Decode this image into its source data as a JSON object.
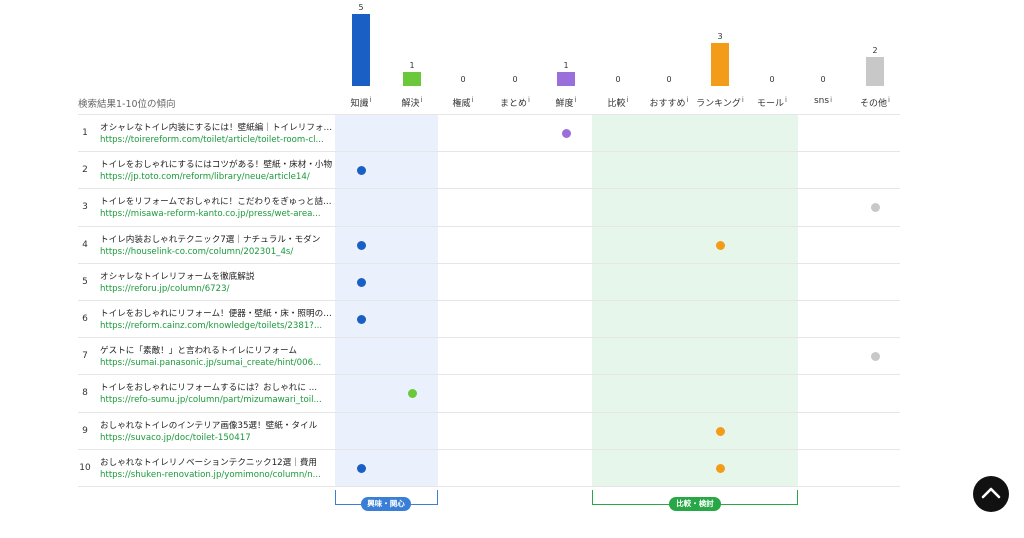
{
  "section_title": "検索結果1-10位の傾向",
  "info_glyph": "i",
  "categories": [
    {
      "label": "知識",
      "count": 5,
      "color": "#1a5fc4"
    },
    {
      "label": "解決",
      "count": 1,
      "color": "#6ac83a"
    },
    {
      "label": "権威",
      "count": 0,
      "color": "#999999"
    },
    {
      "label": "まとめ",
      "count": 0,
      "color": "#999999"
    },
    {
      "label": "鮮度",
      "count": 1,
      "color": "#9a6fdc"
    },
    {
      "label": "比較",
      "count": 0,
      "color": "#999999"
    },
    {
      "label": "おすすめ",
      "count": 0,
      "color": "#999999"
    },
    {
      "label": "ランキング",
      "count": 3,
      "color": "#f39c1a"
    },
    {
      "label": "モール",
      "count": 0,
      "color": "#999999"
    },
    {
      "label": "sns",
      "count": 0,
      "color": "#999999"
    },
    {
      "label": "その他",
      "count": 2,
      "color": "#c8c8c8"
    }
  ],
  "results": [
    {
      "rank": "1",
      "title": "オシャレなトイレ内装にするには！壁紙編｜トイレリフォーム",
      "url": "https://toirereform.com/toilet/article/toilet-room-cl...",
      "marks": [
        4
      ]
    },
    {
      "rank": "2",
      "title": "トイレをおしゃれにするにはコツがある！壁紙・床材・小物",
      "url": "https://jp.toto.com/reform/library/neue/article14/",
      "marks": [
        0
      ]
    },
    {
      "rank": "3",
      "title": "トイレをリフォームでおしゃれに！こだわりをぎゅっと詰め込んで",
      "url": "https://misawa-reform-kanto.co.jp/press/wet-area...",
      "marks": [
        10
      ]
    },
    {
      "rank": "4",
      "title": "トイレ内装おしゃれテクニック7選｜ナチュラル・モダン",
      "url": "https://houselink-co.com/column/202301_4s/",
      "marks": [
        0,
        7
      ]
    },
    {
      "rank": "5",
      "title": "オシャレなトイレリフォームを徹底解説",
      "url": "https://reforu.jp/column/6723/",
      "marks": [
        0
      ]
    },
    {
      "rank": "6",
      "title": "トイレをおしゃれにリフォーム！便器・壁紙・床・照明の選び方",
      "url": "https://reform.cainz.com/knowledge/toilets/2381?...",
      "marks": [
        0
      ]
    },
    {
      "rank": "7",
      "title": "ゲストに「素敵！」と言われるトイレにリフォーム",
      "url": "https://sumai.panasonic.jp/sumai_create/hint/006...",
      "marks": [
        10
      ]
    },
    {
      "rank": "8",
      "title": "トイレをおしゃれにリフォームするには？おしゃれに ...",
      "url": "https://refo-sumu.jp/column/part/mizumawari_toil...",
      "marks": [
        1
      ]
    },
    {
      "rank": "9",
      "title": "おしゃれなトイレのインテリア画像35選！壁紙・タイル",
      "url": "https://suvaco.jp/doc/toilet-150417",
      "marks": [
        7
      ]
    },
    {
      "rank": "10",
      "title": "おしゃれなトイレリノベーションテクニック12選｜費用",
      "url": "https://shuken-renovation.jp/yomimono/column/n...",
      "marks": [
        0,
        7
      ]
    }
  ],
  "groups": [
    {
      "label": "興味・関心",
      "color": "#3a7fd5"
    },
    {
      "label": "比較・検討",
      "color": "#27a745"
    }
  ],
  "scroll_top_icon": "chevron-up-icon"
}
